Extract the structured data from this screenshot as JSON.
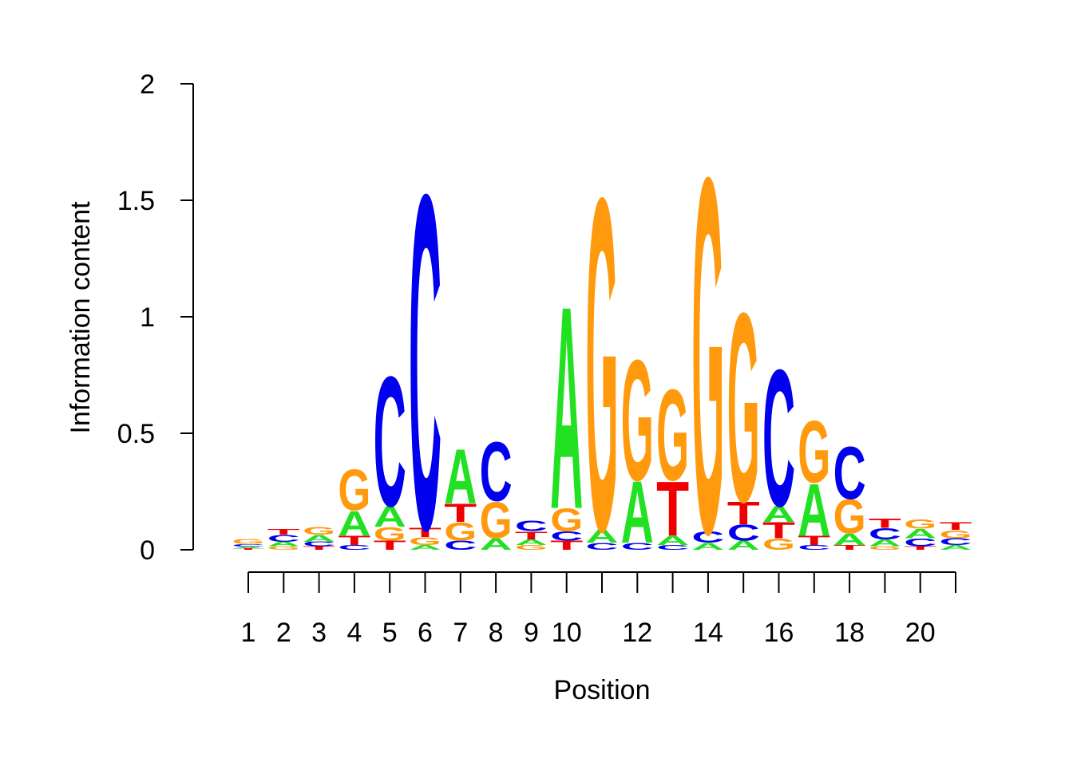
{
  "chart_data": {
    "type": "sequence-logo",
    "title": "",
    "xlabel": "Position",
    "ylabel": "Information content",
    "ylim": [
      0,
      2
    ],
    "y_ticks": [
      "0",
      "0.5",
      "1",
      "1.5",
      "2"
    ],
    "y_tick_values": [
      0,
      0.5,
      1,
      1.5,
      2
    ],
    "x_tick_labels": [
      "1",
      "2",
      "3",
      "4",
      "5",
      "6",
      "7",
      "8",
      "9",
      "10",
      "",
      "12",
      "",
      "14",
      "",
      "16",
      "",
      "18",
      "",
      "20",
      ""
    ],
    "colors": {
      "A": "#22e022",
      "C": "#0000ee",
      "G": "#ff9a0f",
      "T": "#ee0000"
    },
    "positions": [
      [
        {
          "base": "T",
          "value": 0.006
        },
        {
          "base": "A",
          "value": 0.008
        },
        {
          "base": "C",
          "value": 0.012
        },
        {
          "base": "G",
          "value": 0.02
        }
      ],
      [
        {
          "base": "G",
          "value": 0.015
        },
        {
          "base": "A",
          "value": 0.02
        },
        {
          "base": "C",
          "value": 0.03
        },
        {
          "base": "T",
          "value": 0.025
        }
      ],
      [
        {
          "base": "T",
          "value": 0.015
        },
        {
          "base": "C",
          "value": 0.02
        },
        {
          "base": "A",
          "value": 0.03
        },
        {
          "base": "G",
          "value": 0.035
        }
      ],
      [
        {
          "base": "C",
          "value": 0.02
        },
        {
          "base": "T",
          "value": 0.04
        },
        {
          "base": "A",
          "value": 0.11
        },
        {
          "base": "G",
          "value": 0.18
        }
      ],
      [
        {
          "base": "T",
          "value": 0.04
        },
        {
          "base": "G",
          "value": 0.06
        },
        {
          "base": "A",
          "value": 0.09
        },
        {
          "base": "C",
          "value": 0.57
        }
      ],
      [
        {
          "base": "A",
          "value": 0.02
        },
        {
          "base": "G",
          "value": 0.035
        },
        {
          "base": "T",
          "value": 0.04
        },
        {
          "base": "C",
          "value": 1.47
        }
      ],
      [
        {
          "base": "C",
          "value": 0.04
        },
        {
          "base": "G",
          "value": 0.08
        },
        {
          "base": "T",
          "value": 0.08
        },
        {
          "base": "A",
          "value": 0.24
        }
      ],
      [
        {
          "base": "A",
          "value": 0.05
        },
        {
          "base": "G",
          "value": 0.16
        },
        {
          "base": "C",
          "value": 0.26
        }
      ],
      [
        {
          "base": "G",
          "value": 0.02
        },
        {
          "base": "A",
          "value": 0.025
        },
        {
          "base": "T",
          "value": 0.035
        },
        {
          "base": "C",
          "value": 0.045
        }
      ],
      [
        {
          "base": "T",
          "value": 0.04
        },
        {
          "base": "C",
          "value": 0.04
        },
        {
          "base": "G",
          "value": 0.1
        },
        {
          "base": "A",
          "value": 0.89
        }
      ],
      [
        {
          "base": "C",
          "value": 0.03
        },
        {
          "base": "A",
          "value": 0.06
        },
        {
          "base": "G",
          "value": 1.46
        }
      ],
      [
        {
          "base": "C",
          "value": 0.03
        },
        {
          "base": "A",
          "value": 0.27
        },
        {
          "base": "G",
          "value": 0.53
        }
      ],
      [
        {
          "base": "C",
          "value": 0.02
        },
        {
          "base": "A",
          "value": 0.04
        },
        {
          "base": "T",
          "value": 0.24
        },
        {
          "base": "G",
          "value": 0.4
        }
      ],
      [
        {
          "base": "A",
          "value": 0.03
        },
        {
          "base": "C",
          "value": 0.05
        },
        {
          "base": "G",
          "value": 1.56
        }
      ],
      [
        {
          "base": "A",
          "value": 0.04
        },
        {
          "base": "C",
          "value": 0.07
        },
        {
          "base": "T",
          "value": 0.1
        },
        {
          "base": "G",
          "value": 0.83
        }
      ],
      [
        {
          "base": "G",
          "value": 0.05
        },
        {
          "base": "T",
          "value": 0.07
        },
        {
          "base": "A",
          "value": 0.07
        },
        {
          "base": "C",
          "value": 0.6
        }
      ],
      [
        {
          "base": "C",
          "value": 0.02
        },
        {
          "base": "T",
          "value": 0.04
        },
        {
          "base": "A",
          "value": 0.23
        },
        {
          "base": "G",
          "value": 0.27
        }
      ],
      [
        {
          "base": "T",
          "value": 0.02
        },
        {
          "base": "A",
          "value": 0.05
        },
        {
          "base": "G",
          "value": 0.15
        },
        {
          "base": "C",
          "value": 0.23
        }
      ],
      [
        {
          "base": "G",
          "value": 0.015
        },
        {
          "base": "A",
          "value": 0.03
        },
        {
          "base": "C",
          "value": 0.05
        },
        {
          "base": "T",
          "value": 0.04
        }
      ],
      [
        {
          "base": "T",
          "value": 0.015
        },
        {
          "base": "C",
          "value": 0.035
        },
        {
          "base": "A",
          "value": 0.04
        },
        {
          "base": "G",
          "value": 0.04
        }
      ],
      [
        {
          "base": "A",
          "value": 0.02
        },
        {
          "base": "C",
          "value": 0.03
        },
        {
          "base": "G",
          "value": 0.035
        },
        {
          "base": "T",
          "value": 0.035
        }
      ]
    ]
  }
}
